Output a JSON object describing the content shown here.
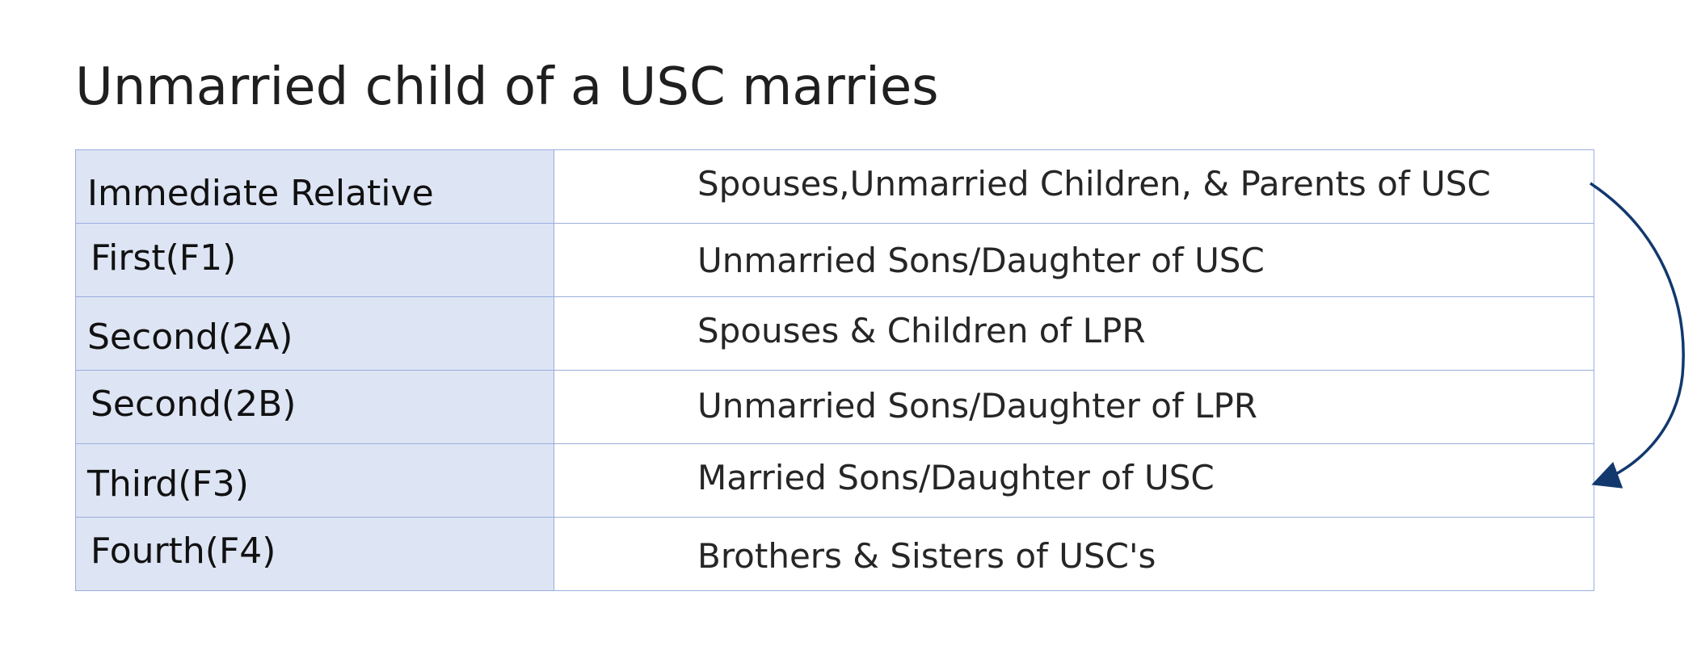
{
  "title": "Unmarried child of a USC marries",
  "categories": [
    {
      "label": "Immediate Relative",
      "description": "Spouses,Unmarried Children, & Parents of USC"
    },
    {
      "label": "First(F1)",
      "description": "Unmarried Sons/Daughter of USC"
    },
    {
      "label": "Second(2A)",
      "description": "Spouses & Children of LPR"
    },
    {
      "label": "Second(2B)",
      "description": "Unmarried Sons/Daughter of LPR"
    },
    {
      "label": "Third(F3)",
      "description": "Married Sons/Daughter of USC"
    },
    {
      "label": "Fourth(F4)",
      "description": "Brothers & Sisters of USC's"
    }
  ],
  "arrow": {
    "from": "Immediate Relative",
    "to": "Third(F3)",
    "color": "#12386e"
  },
  "colors": {
    "label_fill": "#dde4f4",
    "border": "#9aaedc"
  }
}
